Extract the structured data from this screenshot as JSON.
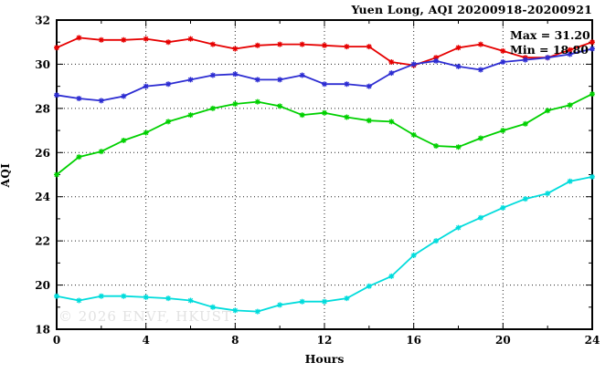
{
  "title": "Yuen Long, AQI 20200918-20200921",
  "annotation": {
    "max_label": "Max = 31.20",
    "min_label": "Min = 18.80"
  },
  "watermark": "© 2026 ENVF, HKUST",
  "chart_data": {
    "type": "line",
    "title": "Yuen Long, AQI 20200918-20200921",
    "xlabel": "Hours",
    "ylabel": "AQI",
    "xlim": [
      0,
      24
    ],
    "ylim": [
      18,
      32
    ],
    "x_major_ticks": [
      0,
      4,
      8,
      12,
      16,
      20,
      24
    ],
    "x_minor_ticks": [
      2,
      6,
      10,
      14,
      18,
      22
    ],
    "y_major_ticks": [
      18,
      20,
      22,
      24,
      26,
      28,
      30,
      32
    ],
    "y_minor_ticks": [
      19,
      21,
      23,
      25,
      27,
      29,
      31
    ],
    "grid": true,
    "legend_position": "none",
    "max_value": 31.2,
    "min_value": 18.8,
    "x": [
      0,
      1,
      2,
      3,
      4,
      5,
      6,
      7,
      8,
      9,
      10,
      11,
      12,
      13,
      14,
      15,
      16,
      17,
      18,
      19,
      20,
      21,
      22,
      23,
      24
    ],
    "series": [
      {
        "name": "red-line",
        "color": "#e60000",
        "values": [
          30.75,
          31.2,
          31.1,
          31.1,
          31.15,
          31.0,
          31.15,
          30.9,
          30.7,
          30.85,
          30.9,
          30.9,
          30.85,
          30.8,
          30.8,
          30.1,
          29.95,
          30.3,
          30.75,
          30.9,
          30.6,
          30.3,
          30.3,
          30.65,
          31.0
        ]
      },
      {
        "name": "blue-line",
        "color": "#2d2dd2",
        "values": [
          28.6,
          28.45,
          28.35,
          28.55,
          29.0,
          29.1,
          29.3,
          29.5,
          29.55,
          29.3,
          29.3,
          29.5,
          29.1,
          29.1,
          29.0,
          29.6,
          30.0,
          30.15,
          29.9,
          29.75,
          30.1,
          30.2,
          30.3,
          30.45,
          30.7
        ]
      },
      {
        "name": "green-line",
        "color": "#00d000",
        "values": [
          25.0,
          25.8,
          26.05,
          26.55,
          26.9,
          27.4,
          27.7,
          28.0,
          28.2,
          28.3,
          28.1,
          27.7,
          27.8,
          27.6,
          27.45,
          27.4,
          26.8,
          26.3,
          26.25,
          26.65,
          27.0,
          27.3,
          27.9,
          28.15,
          28.65
        ]
      },
      {
        "name": "cyan-line",
        "color": "#00dcdc",
        "values": [
          19.5,
          19.3,
          19.5,
          19.5,
          19.45,
          19.4,
          19.3,
          19.0,
          18.85,
          18.8,
          19.1,
          19.25,
          19.25,
          19.4,
          19.95,
          20.4,
          21.35,
          22.0,
          22.6,
          23.05,
          23.5,
          23.9,
          24.15,
          24.7,
          24.9
        ]
      }
    ]
  }
}
